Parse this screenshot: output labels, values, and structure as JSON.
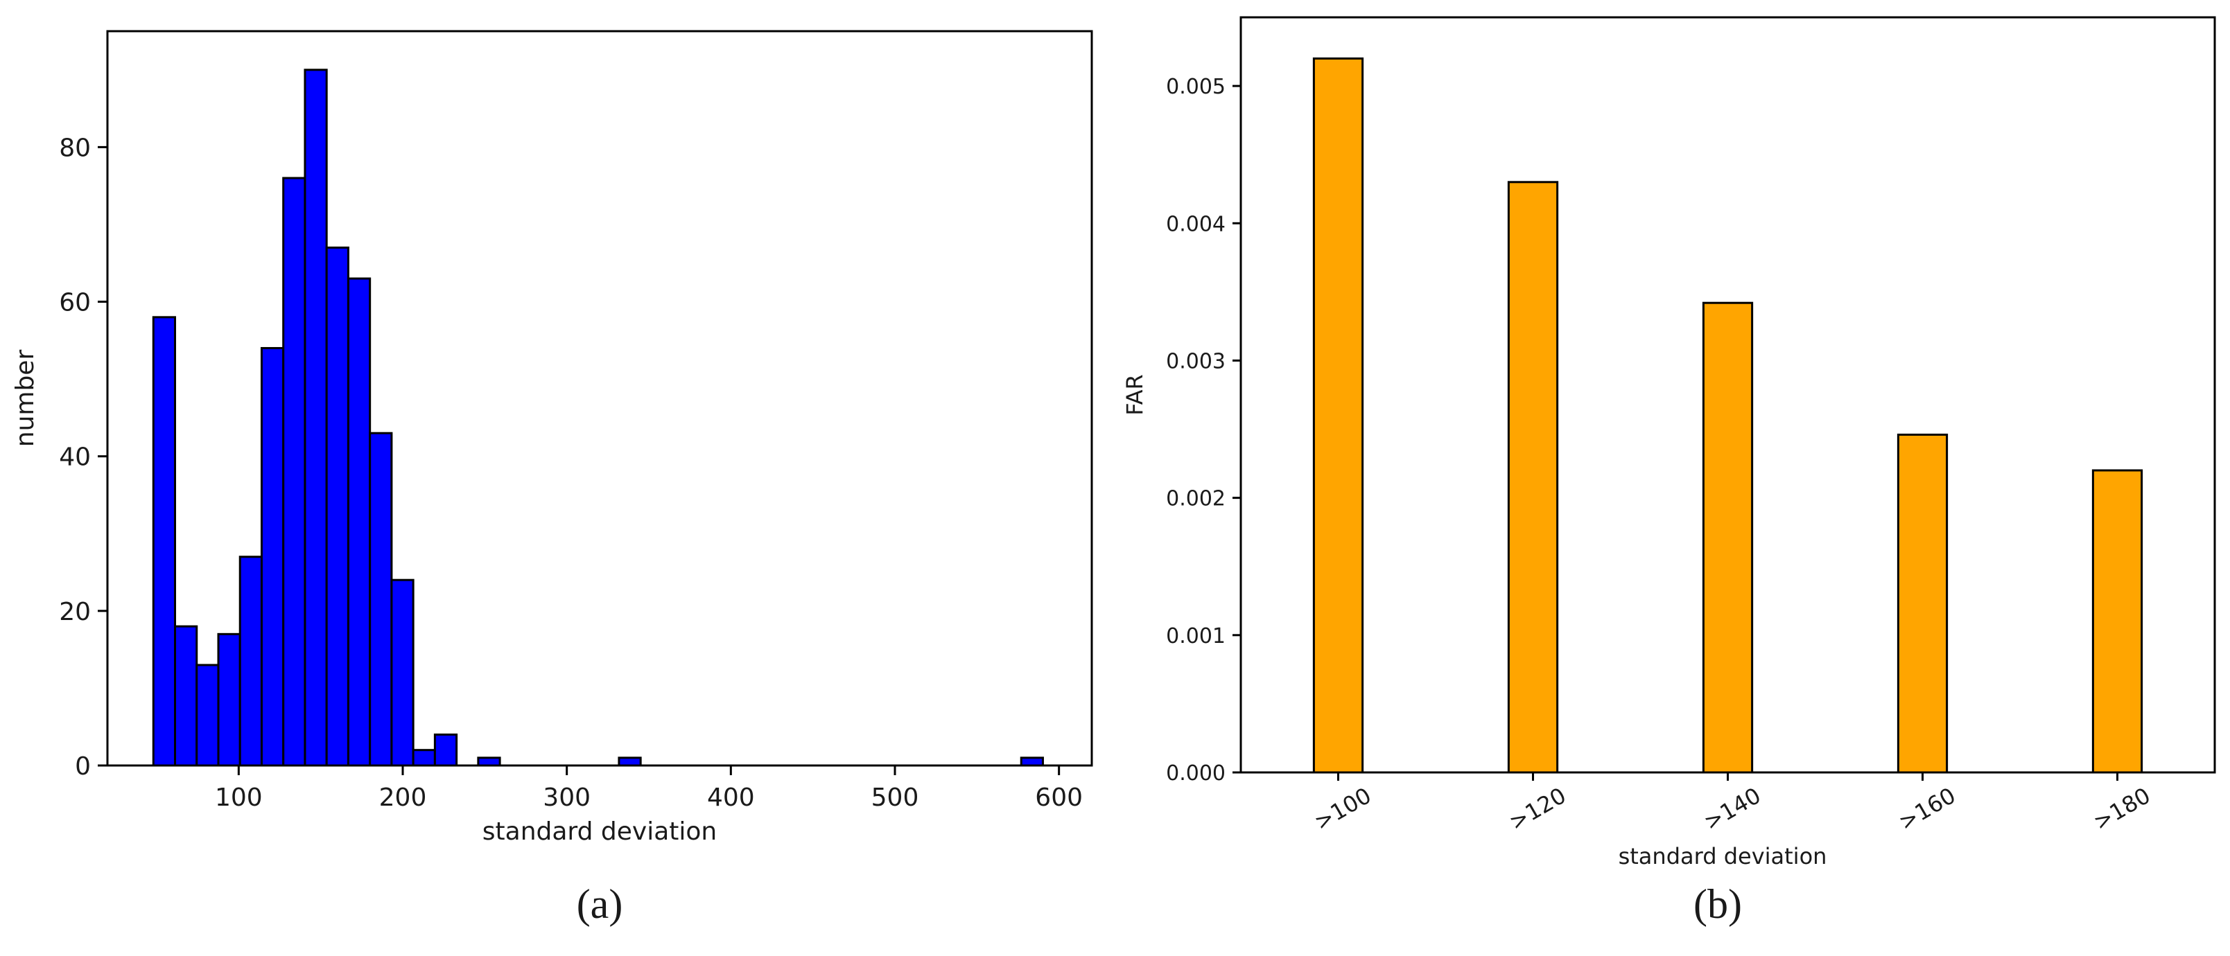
{
  "figure": {
    "captions": [
      "(a)",
      "(b)"
    ]
  },
  "chart_data": [
    {
      "type": "bar",
      "subtype": "histogram",
      "title": "",
      "xlabel": "standard deviation",
      "ylabel": "number",
      "xlim": [
        20,
        620
      ],
      "ylim": [
        0,
        95
      ],
      "xticks": [
        100,
        200,
        300,
        400,
        500,
        600
      ],
      "yticks": [
        0,
        20,
        40,
        60,
        80
      ],
      "bin_width": 13.2,
      "bins": [
        {
          "x0": 48.0,
          "value": 58
        },
        {
          "x0": 61.2,
          "value": 18
        },
        {
          "x0": 74.4,
          "value": 13
        },
        {
          "x0": 87.6,
          "value": 17
        },
        {
          "x0": 100.8,
          "value": 27
        },
        {
          "x0": 114.0,
          "value": 54
        },
        {
          "x0": 127.2,
          "value": 76
        },
        {
          "x0": 140.4,
          "value": 90
        },
        {
          "x0": 153.6,
          "value": 67
        },
        {
          "x0": 166.8,
          "value": 63
        },
        {
          "x0": 180.0,
          "value": 43
        },
        {
          "x0": 193.2,
          "value": 24
        },
        {
          "x0": 206.4,
          "value": 2
        },
        {
          "x0": 219.6,
          "value": 4
        },
        {
          "x0": 232.8,
          "value": 0
        },
        {
          "x0": 246.0,
          "value": 1
        },
        {
          "x0": 331.8,
          "value": 1
        },
        {
          "x0": 577.0,
          "value": 1
        }
      ],
      "bar_color": "#0000ff",
      "edge_color": "#000000",
      "grid": false
    },
    {
      "type": "bar",
      "title": "",
      "xlabel": "standard deviation",
      "ylabel": "FAR",
      "categories": [
        ">100",
        ">120",
        ">140",
        ">160",
        ">180"
      ],
      "values": [
        0.0052,
        0.0043,
        0.00342,
        0.00246,
        0.0022
      ],
      "ylim": [
        0,
        0.0055
      ],
      "yticks": [
        "0.000",
        "0.001",
        "0.002",
        "0.003",
        "0.004",
        "0.005"
      ],
      "bar_color": "#ffa500",
      "edge_color": "#000000",
      "grid": false
    }
  ]
}
